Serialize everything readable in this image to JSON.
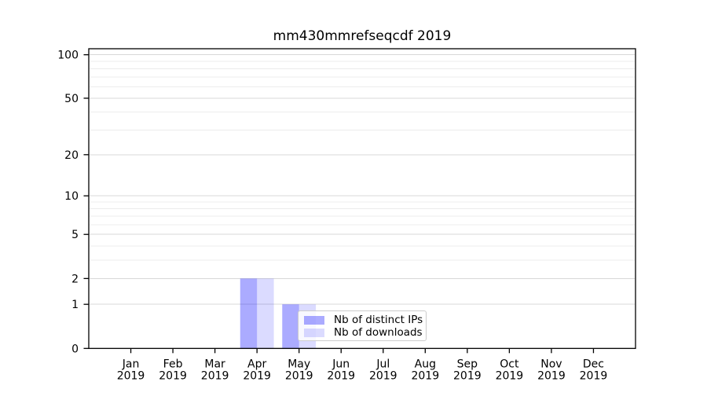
{
  "title": "mm430mmrefseqcdf 2019",
  "chart_data": {
    "type": "bar",
    "title": "mm430mmrefseqcdf 2019",
    "categories": [
      "Jan 2019",
      "Feb 2019",
      "Mar 2019",
      "Apr 2019",
      "May 2019",
      "Jun 2019",
      "Jul 2019",
      "Aug 2019",
      "Sep 2019",
      "Oct 2019",
      "Nov 2019",
      "Dec 2019"
    ],
    "series": [
      {
        "name": "Nb of distinct IPs",
        "color": "rgba(0,0,255,0.33)",
        "values": [
          0,
          0,
          0,
          2,
          1,
          0,
          0,
          0,
          0,
          0,
          0,
          0
        ]
      },
      {
        "name": "Nb of downloads",
        "color": "rgba(0,0,255,0.14)",
        "values": [
          0,
          0,
          0,
          2,
          1,
          0,
          0,
          0,
          0,
          0,
          0,
          0
        ]
      }
    ],
    "yscale": "log1p",
    "yticks": [
      0,
      1,
      2,
      5,
      10,
      20,
      50,
      100
    ],
    "minor_yticks": [
      3,
      4,
      6,
      7,
      8,
      9,
      30,
      40,
      60,
      70,
      80,
      90
    ],
    "ylim": [
      0,
      110
    ],
    "xlabel": "",
    "ylabel": "",
    "grid": true,
    "legend_position": "lower-right-inside"
  },
  "colors": {
    "axis": "#000000",
    "major_grid": "#d8d8d8",
    "minor_grid": "#ececec",
    "background": "#ffffff"
  }
}
